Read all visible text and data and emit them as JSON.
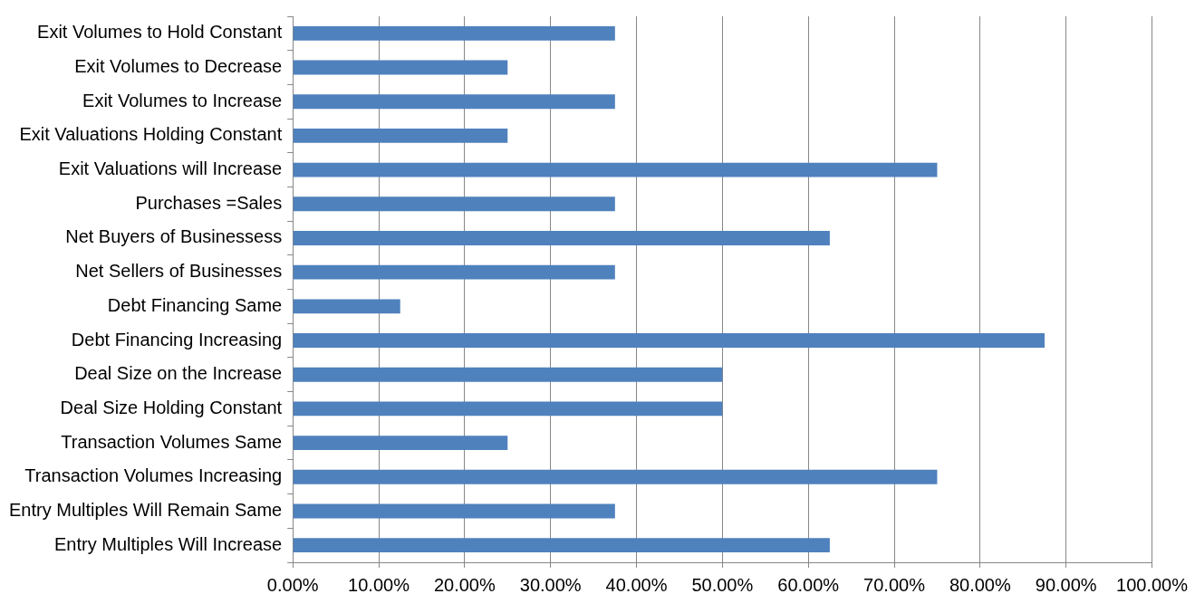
{
  "chart_data": {
    "type": "bar",
    "orientation": "horizontal",
    "categories": [
      "Exit Volumes to Hold Constant",
      "Exit Volumes to Decrease",
      "Exit Volumes to Increase",
      "Exit Valuations Holding Constant",
      "Exit Valuations will Increase",
      "Purchases =Sales",
      "Net Buyers of Businessess",
      "Net Sellers of Businesses",
      "Debt Financing Same",
      "Debt Financing Increasing",
      "Deal Size on the Increase",
      "Deal Size Holding Constant",
      "Transaction Volumes Same",
      "Transaction Volumes Increasing",
      "Entry Multiples Will Remain Same",
      "Entry Multiples Will Increase"
    ],
    "values": [
      37.5,
      25,
      37.5,
      25,
      75,
      37.5,
      62.5,
      37.5,
      12.5,
      87.5,
      50,
      50,
      25,
      75,
      37.5,
      62.5
    ],
    "color": "#4f81bd",
    "xlim": [
      0,
      100
    ],
    "xticks": [
      {
        "value": 0,
        "label": "0.00%"
      },
      {
        "value": 10,
        "label": "10.00%"
      },
      {
        "value": 20,
        "label": "20.00%"
      },
      {
        "value": 30,
        "label": "30.00%"
      },
      {
        "value": 40,
        "label": "40.00%"
      },
      {
        "value": 50,
        "label": "50.00%"
      },
      {
        "value": 60,
        "label": "60.00%"
      },
      {
        "value": 70,
        "label": "70.00%"
      },
      {
        "value": 80,
        "label": "80.00%"
      },
      {
        "value": 90,
        "label": "90.00%"
      },
      {
        "value": 100,
        "label": "100.00%"
      }
    ],
    "grid": "x",
    "legend": false
  }
}
